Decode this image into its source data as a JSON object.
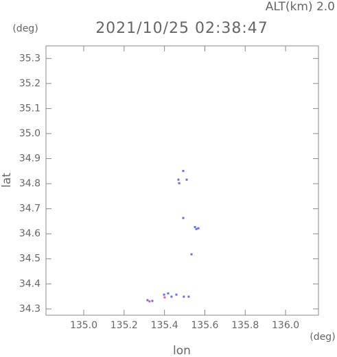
{
  "chart_data": {
    "type": "scatter",
    "title": "2021/10/25 02:38:47",
    "subtitle": "ALT(km) 2.0",
    "y_unit": "(deg)",
    "x_unit": "(deg)",
    "y_label": "lat",
    "x_label": "lon",
    "xlim": [
      134.813,
      136.163
    ],
    "ylim": [
      34.275,
      35.35
    ],
    "xticks": [
      {
        "value": 135.0,
        "label": "135.0"
      },
      135.2,
      135.4,
      135.6,
      135.8,
      {
        "value": 136.0,
        "label": "136.0"
      }
    ],
    "yticks": [
      34.3,
      34.4,
      34.5,
      34.6,
      34.7,
      34.8,
      34.9,
      {
        "value": 35.0,
        "label": "35.0"
      },
      35.1,
      35.2,
      35.3
    ],
    "series": [
      {
        "color": "#6a6af0",
        "x": [
          135.493,
          135.469,
          135.473,
          135.51,
          135.493,
          135.551,
          135.558,
          135.568,
          135.534,
          135.316,
          135.34,
          135.398,
          135.418,
          135.435,
          135.459,
          135.496,
          135.52
        ],
        "values": [
          34.851,
          34.816,
          34.802,
          34.816,
          34.663,
          34.627,
          34.619,
          34.622,
          34.518,
          34.335,
          34.332,
          34.357,
          34.362,
          34.349,
          34.357,
          34.349,
          34.349
        ]
      },
      {
        "color": "#e060a0",
        "x": [
          135.326,
          135.401
        ],
        "values": [
          34.33,
          34.346
        ]
      }
    ]
  }
}
